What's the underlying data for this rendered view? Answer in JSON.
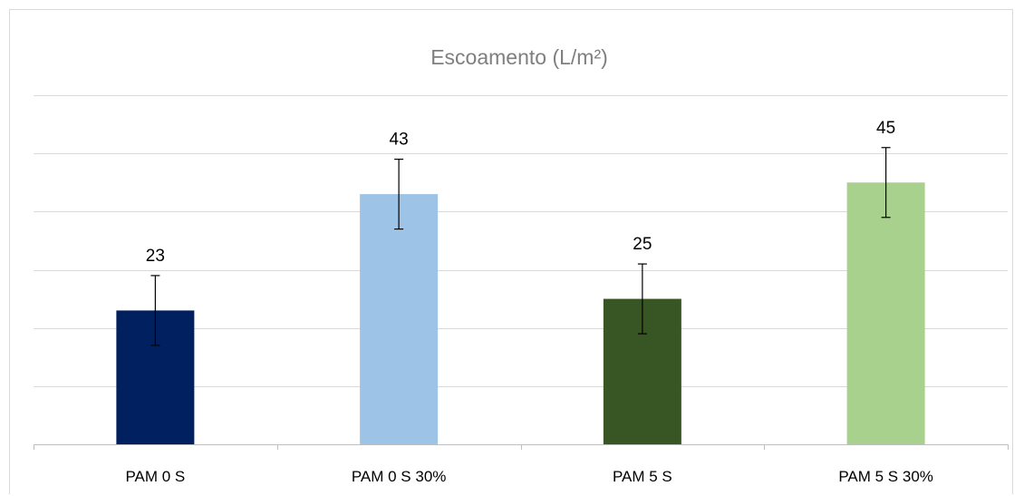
{
  "chart_data": {
    "type": "bar",
    "title": "Escoamento (L/m²)",
    "xlabel": "",
    "ylabel": "",
    "categories": [
      "PAM 0 S",
      "PAM 0 S 30%",
      "PAM 5 S",
      "PAM 5 S 30%"
    ],
    "values": [
      23,
      43,
      25,
      45
    ],
    "error": [
      6,
      6,
      6,
      6
    ],
    "data_labels": [
      "23",
      "43",
      "25",
      "45"
    ],
    "colors": [
      "#002060",
      "#9dc3e6",
      "#375623",
      "#a9d18e"
    ],
    "ylim": [
      0,
      60
    ],
    "ytick_step": 10,
    "y_tick_labels_shown": false,
    "grid": true,
    "legend": "none"
  }
}
